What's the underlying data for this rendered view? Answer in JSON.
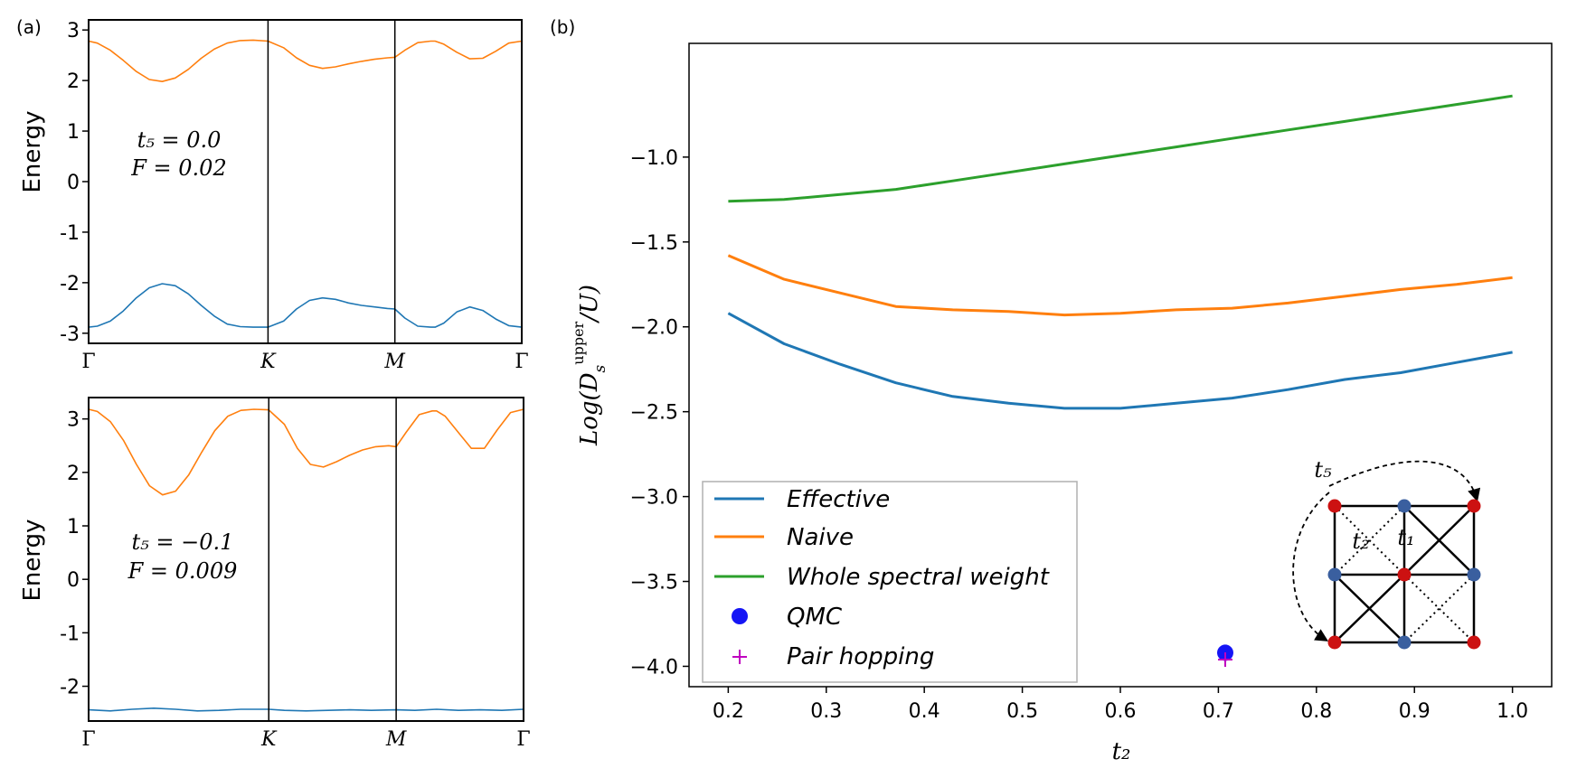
{
  "panel_labels": {
    "a": "(a)",
    "b": "(b)"
  },
  "chart_data": [
    {
      "id": "band-top",
      "type": "line",
      "ylabel": "Energy",
      "ylim": [
        -3.2,
        3.2
      ],
      "yticks": [
        "3",
        "2",
        "1",
        "0",
        "-1",
        "-2",
        "-3"
      ],
      "ytick_values": [
        3,
        2,
        1,
        0,
        -1,
        -2,
        -3
      ],
      "xticks": [
        "Γ",
        "K",
        "M",
        "Γ"
      ],
      "xtick_positions": [
        0,
        0.4142,
        0.7071,
        1.0
      ],
      "annotation": {
        "line1": "t₅ = 0.0",
        "line2": "F = 0.02"
      },
      "series": [
        {
          "name": "upper band",
          "color": "#ff7f0e",
          "x": [
            0,
            0.02,
            0.05,
            0.08,
            0.11,
            0.14,
            0.17,
            0.2,
            0.23,
            0.26,
            0.29,
            0.32,
            0.35,
            0.38,
            0.414,
            0.45,
            0.48,
            0.51,
            0.54,
            0.57,
            0.6,
            0.63,
            0.66,
            0.69,
            0.707,
            0.73,
            0.76,
            0.79,
            0.8,
            0.82,
            0.85,
            0.88,
            0.91,
            0.94,
            0.97,
            1.0
          ],
          "y": [
            2.78,
            2.74,
            2.6,
            2.4,
            2.18,
            2.02,
            1.98,
            2.05,
            2.22,
            2.44,
            2.62,
            2.74,
            2.79,
            2.8,
            2.78,
            2.65,
            2.45,
            2.3,
            2.24,
            2.27,
            2.33,
            2.38,
            2.42,
            2.45,
            2.46,
            2.6,
            2.75,
            2.78,
            2.78,
            2.72,
            2.56,
            2.43,
            2.44,
            2.58,
            2.74,
            2.78
          ]
        },
        {
          "name": "lower band",
          "color": "#1f77b4",
          "x": [
            0,
            0.02,
            0.05,
            0.08,
            0.11,
            0.14,
            0.17,
            0.2,
            0.23,
            0.26,
            0.29,
            0.32,
            0.35,
            0.38,
            0.414,
            0.45,
            0.48,
            0.51,
            0.54,
            0.57,
            0.6,
            0.63,
            0.66,
            0.69,
            0.707,
            0.73,
            0.76,
            0.79,
            0.8,
            0.82,
            0.85,
            0.88,
            0.91,
            0.94,
            0.97,
            1.0
          ],
          "y": [
            -2.88,
            -2.86,
            -2.76,
            -2.56,
            -2.3,
            -2.1,
            -2.02,
            -2.06,
            -2.22,
            -2.45,
            -2.66,
            -2.82,
            -2.87,
            -2.88,
            -2.88,
            -2.76,
            -2.52,
            -2.35,
            -2.3,
            -2.33,
            -2.4,
            -2.45,
            -2.48,
            -2.51,
            -2.52,
            -2.7,
            -2.86,
            -2.88,
            -2.88,
            -2.8,
            -2.58,
            -2.48,
            -2.55,
            -2.72,
            -2.85,
            -2.88
          ]
        }
      ]
    },
    {
      "id": "band-bottom",
      "type": "line",
      "ylabel": "Energy",
      "ylim": [
        -2.65,
        3.4
      ],
      "yticks": [
        "3",
        "2",
        "1",
        "0",
        "-1",
        "-2"
      ],
      "ytick_values": [
        3,
        2,
        1,
        0,
        -1,
        -2
      ],
      "xticks": [
        "Γ",
        "K",
        "M",
        "Γ"
      ],
      "xtick_positions": [
        0,
        0.4142,
        0.7071,
        1.0
      ],
      "annotation": {
        "line1": "t₅ = −0.1",
        "line2": "F = 0.009"
      },
      "series": [
        {
          "name": "upper band",
          "color": "#ff7f0e",
          "x": [
            0,
            0.02,
            0.05,
            0.08,
            0.11,
            0.14,
            0.17,
            0.2,
            0.23,
            0.26,
            0.29,
            0.32,
            0.35,
            0.38,
            0.414,
            0.45,
            0.48,
            0.51,
            0.54,
            0.57,
            0.6,
            0.63,
            0.66,
            0.69,
            0.707,
            0.73,
            0.76,
            0.79,
            0.8,
            0.82,
            0.85,
            0.88,
            0.91,
            0.94,
            0.97,
            1.0
          ],
          "y": [
            3.18,
            3.14,
            2.95,
            2.6,
            2.15,
            1.75,
            1.58,
            1.65,
            1.95,
            2.38,
            2.78,
            3.05,
            3.16,
            3.18,
            3.17,
            2.9,
            2.45,
            2.15,
            2.1,
            2.2,
            2.32,
            2.42,
            2.48,
            2.5,
            2.48,
            2.75,
            3.08,
            3.15,
            3.15,
            3.05,
            2.75,
            2.45,
            2.45,
            2.8,
            3.12,
            3.18
          ]
        },
        {
          "name": "lower band",
          "color": "#1f77b4",
          "x": [
            0,
            0.05,
            0.1,
            0.15,
            0.2,
            0.25,
            0.3,
            0.35,
            0.414,
            0.45,
            0.5,
            0.55,
            0.6,
            0.65,
            0.707,
            0.75,
            0.8,
            0.85,
            0.9,
            0.95,
            1.0
          ],
          "y": [
            -2.44,
            -2.46,
            -2.43,
            -2.41,
            -2.43,
            -2.46,
            -2.45,
            -2.43,
            -2.43,
            -2.45,
            -2.46,
            -2.45,
            -2.44,
            -2.45,
            -2.44,
            -2.45,
            -2.43,
            -2.45,
            -2.44,
            -2.45,
            -2.43
          ]
        }
      ]
    },
    {
      "id": "main",
      "type": "line",
      "xlabel": "t₂",
      "ylabel": "Log(D_s^upper / U)",
      "ylabel_parts": {
        "pre": "Log(D",
        "sub": "s",
        "sup": "upper",
        "post": "/U)"
      },
      "xlim": [
        0.16,
        1.04
      ],
      "ylim": [
        -4.12,
        -0.33
      ],
      "xticks": [
        "0.2",
        "0.3",
        "0.4",
        "0.5",
        "0.6",
        "0.7",
        "0.8",
        "0.9",
        "1.0"
      ],
      "xtick_values": [
        0.2,
        0.3,
        0.4,
        0.5,
        0.6,
        0.7,
        0.8,
        0.9,
        1.0
      ],
      "yticks": [
        "−1.0",
        "−1.5",
        "−2.0",
        "−2.5",
        "−3.0",
        "−3.5",
        "−4.0"
      ],
      "ytick_values": [
        -1.0,
        -1.5,
        -2.0,
        -2.5,
        -3.0,
        -3.5,
        -4.0
      ],
      "series": [
        {
          "name": "Effective",
          "color": "#1f77b4",
          "x": [
            0.2,
            0.257,
            0.314,
            0.371,
            0.429,
            0.486,
            0.543,
            0.6,
            0.657,
            0.714,
            0.771,
            0.829,
            0.886,
            0.943,
            1.0
          ],
          "y": [
            -1.92,
            -2.1,
            -2.22,
            -2.33,
            -2.41,
            -2.45,
            -2.48,
            -2.48,
            -2.45,
            -2.42,
            -2.37,
            -2.31,
            -2.27,
            -2.21,
            -2.15
          ]
        },
        {
          "name": "Naive",
          "color": "#ff7f0e",
          "x": [
            0.2,
            0.257,
            0.314,
            0.371,
            0.429,
            0.486,
            0.543,
            0.6,
            0.657,
            0.714,
            0.771,
            0.829,
            0.886,
            0.943,
            1.0
          ],
          "y": [
            -1.58,
            -1.72,
            -1.8,
            -1.88,
            -1.9,
            -1.91,
            -1.93,
            -1.92,
            -1.9,
            -1.89,
            -1.86,
            -1.82,
            -1.78,
            -1.75,
            -1.71
          ]
        },
        {
          "name": "Whole spectral weight",
          "color": "#2ca02c",
          "x": [
            0.2,
            0.257,
            0.314,
            0.371,
            0.429,
            0.486,
            0.543,
            0.6,
            0.657,
            0.714,
            0.771,
            0.829,
            0.886,
            0.943,
            1.0
          ],
          "y": [
            -1.26,
            -1.25,
            -1.22,
            -1.19,
            -1.14,
            -1.09,
            -1.04,
            -0.99,
            -0.94,
            -0.89,
            -0.84,
            -0.79,
            -0.74,
            -0.69,
            -0.64
          ]
        }
      ],
      "points": [
        {
          "name": "QMC",
          "color": "#1515f5",
          "marker": "circle",
          "x": 0.707,
          "y": -3.92
        },
        {
          "name": "Pair hopping",
          "color": "#c000c0",
          "marker": "plus",
          "x": 0.707,
          "y": -3.96
        }
      ],
      "legend": {
        "placement": "lower-left",
        "entries": [
          "Effective",
          "Naive",
          "Whole spectral weight",
          "QMC",
          "Pair hopping"
        ]
      },
      "inset": {
        "labels": {
          "t1": "t₁",
          "t2": "t₂",
          "t5": "t₅"
        },
        "red_color": "#cc1111",
        "blue_color": "#3a5f9f"
      }
    }
  ]
}
